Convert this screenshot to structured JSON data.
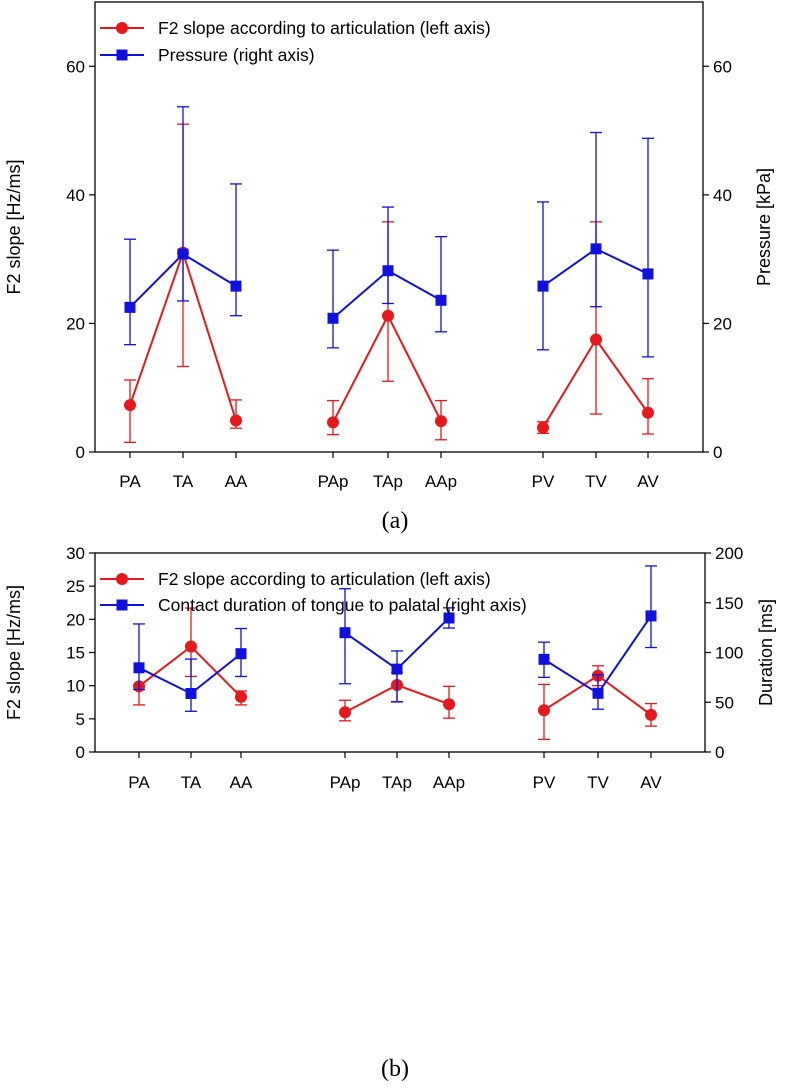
{
  "chart_data": [
    {
      "type": "line",
      "panel_label": "(a)",
      "categories": [
        "PA",
        "TA",
        "AA",
        "PAp",
        "TAp",
        "AAp",
        "PV",
        "TV",
        "AV"
      ],
      "groups": [
        [
          "PA",
          "TA",
          "AA"
        ],
        [
          "PAp",
          "TAp",
          "AAp"
        ],
        [
          "PV",
          "TV",
          "AV"
        ]
      ],
      "ylabel_left": "F2 slope [Hz/ms]",
      "ylabel_right": "Pressure [kPa]",
      "ylim_left": [
        0,
        70
      ],
      "ylim_right": [
        0,
        70
      ],
      "yticks_left": [
        0,
        20,
        40,
        60
      ],
      "yticks_right": [
        0,
        20,
        40,
        60
      ],
      "legend_position": "top-left",
      "grid": false,
      "series": [
        {
          "name": "F2 slope according to articulation (left axis)",
          "axis": "left",
          "color": "#e8171c",
          "marker": "circle",
          "groups": [
            [
              {
                "x": "PA",
                "y": 7.3,
                "err_low": 1.5,
                "err_high": 11.2
              },
              {
                "x": "TA",
                "y": 31.0,
                "err_low": 13.3,
                "err_high": 51.0
              },
              {
                "x": "AA",
                "y": 4.9,
                "err_low": 3.7,
                "err_high": 8.1
              }
            ],
            [
              {
                "x": "PAp",
                "y": 4.6,
                "err_low": 2.7,
                "err_high": 8.0
              },
              {
                "x": "TAp",
                "y": 21.2,
                "err_low": 11.0,
                "err_high": 35.8
              },
              {
                "x": "AAp",
                "y": 4.8,
                "err_low": 1.9,
                "err_high": 8.0
              }
            ],
            [
              {
                "x": "PV",
                "y": 3.8,
                "err_low": 2.9,
                "err_high": 4.7
              },
              {
                "x": "TV",
                "y": 17.5,
                "err_low": 5.9,
                "err_high": 35.8
              },
              {
                "x": "AV",
                "y": 6.1,
                "err_low": 2.8,
                "err_high": 11.4
              }
            ]
          ]
        },
        {
          "name": "Pressure (right axis)",
          "axis": "right",
          "color": "#1010e0",
          "marker": "square",
          "groups": [
            [
              {
                "x": "PA",
                "y": 22.5,
                "err_low": 16.7,
                "err_high": 33.1
              },
              {
                "x": "TA",
                "y": 30.8,
                "err_low": 23.5,
                "err_high": 53.7
              },
              {
                "x": "AA",
                "y": 25.8,
                "err_low": 21.2,
                "err_high": 41.7
              }
            ],
            [
              {
                "x": "PAp",
                "y": 20.8,
                "err_low": 16.2,
                "err_high": 31.4
              },
              {
                "x": "TAp",
                "y": 28.2,
                "err_low": 23.1,
                "err_high": 38.1
              },
              {
                "x": "AAp",
                "y": 23.6,
                "err_low": 18.7,
                "err_high": 33.5
              }
            ],
            [
              {
                "x": "PV",
                "y": 25.8,
                "err_low": 15.9,
                "err_high": 38.9
              },
              {
                "x": "TV",
                "y": 31.6,
                "err_low": 22.6,
                "err_high": 49.7
              },
              {
                "x": "AV",
                "y": 27.7,
                "err_low": 14.8,
                "err_high": 48.8
              }
            ]
          ]
        }
      ]
    },
    {
      "type": "line",
      "panel_label": "(b)",
      "categories": [
        "PA",
        "TA",
        "AA",
        "PAp",
        "TAp",
        "AAp",
        "PV",
        "TV",
        "AV"
      ],
      "groups": [
        [
          "PA",
          "TA",
          "AA"
        ],
        [
          "PAp",
          "TAp",
          "AAp"
        ],
        [
          "PV",
          "TV",
          "AV"
        ]
      ],
      "ylabel_left": "F2 slope [Hz/ms]",
      "ylabel_right": "Duration [ms]",
      "ylim_left": [
        0,
        30
      ],
      "ylim_right": [
        0,
        200
      ],
      "yticks_left": [
        0,
        5,
        10,
        15,
        20,
        25,
        30
      ],
      "yticks_right": [
        0,
        50,
        100,
        150,
        200
      ],
      "legend_position": "top-left",
      "grid": false,
      "series": [
        {
          "name": "F2 slope according to articulation (left axis)",
          "axis": "left",
          "color": "#e8171c",
          "marker": "circle",
          "groups": [
            [
              {
                "x": "PA",
                "y": 9.9,
                "err_low": 7.1,
                "err_high": 9.9
              },
              {
                "x": "TA",
                "y": 15.9,
                "err_low": 11.4,
                "err_high": 21.7
              },
              {
                "x": "AA",
                "y": 8.3,
                "err_low": 7.1,
                "err_high": 9.2
              }
            ],
            [
              {
                "x": "PAp",
                "y": 6.0,
                "err_low": 4.7,
                "err_high": 7.8
              },
              {
                "x": "TAp",
                "y": 10.1,
                "err_low": 7.6,
                "err_high": 12.0
              },
              {
                "x": "AAp",
                "y": 7.2,
                "err_low": 5.1,
                "err_high": 9.9
              }
            ],
            [
              {
                "x": "PV",
                "y": 6.3,
                "err_low": 1.9,
                "err_high": 10.2
              },
              {
                "x": "TV",
                "y": 11.5,
                "err_low": 10.0,
                "err_high": 13.0
              },
              {
                "x": "AV",
                "y": 5.6,
                "err_low": 3.9,
                "err_high": 7.3
              }
            ]
          ]
        },
        {
          "name": "Contact duration of tongue to palatal (right axis)",
          "axis": "right",
          "color": "#1010e0",
          "marker": "square",
          "groups": [
            [
              {
                "x": "PA",
                "y": 84.6,
                "err_low": 62.8,
                "err_high": 128.7
              },
              {
                "x": "TA",
                "y": 58.8,
                "err_low": 40.9,
                "err_high": 93.4
              },
              {
                "x": "AA",
                "y": 98.8,
                "err_low": 75.9,
                "err_high": 124.1
              }
            ],
            [
              {
                "x": "PAp",
                "y": 119.9,
                "err_low": 68.6,
                "err_high": 164.1
              },
              {
                "x": "TAp",
                "y": 83.3,
                "err_low": 50.3,
                "err_high": 101.6
              },
              {
                "x": "AAp",
                "y": 134.7,
                "err_low": 124.6,
                "err_high": 144.9
              }
            ],
            [
              {
                "x": "PV",
                "y": 93.1,
                "err_low": 75.0,
                "err_high": 110.4
              },
              {
                "x": "TV",
                "y": 59.0,
                "err_low": 43.0,
                "err_high": 77.6
              },
              {
                "x": "AV",
                "y": 136.8,
                "err_low": 105.0,
                "err_high": 187.0
              }
            ]
          ]
        }
      ]
    }
  ]
}
